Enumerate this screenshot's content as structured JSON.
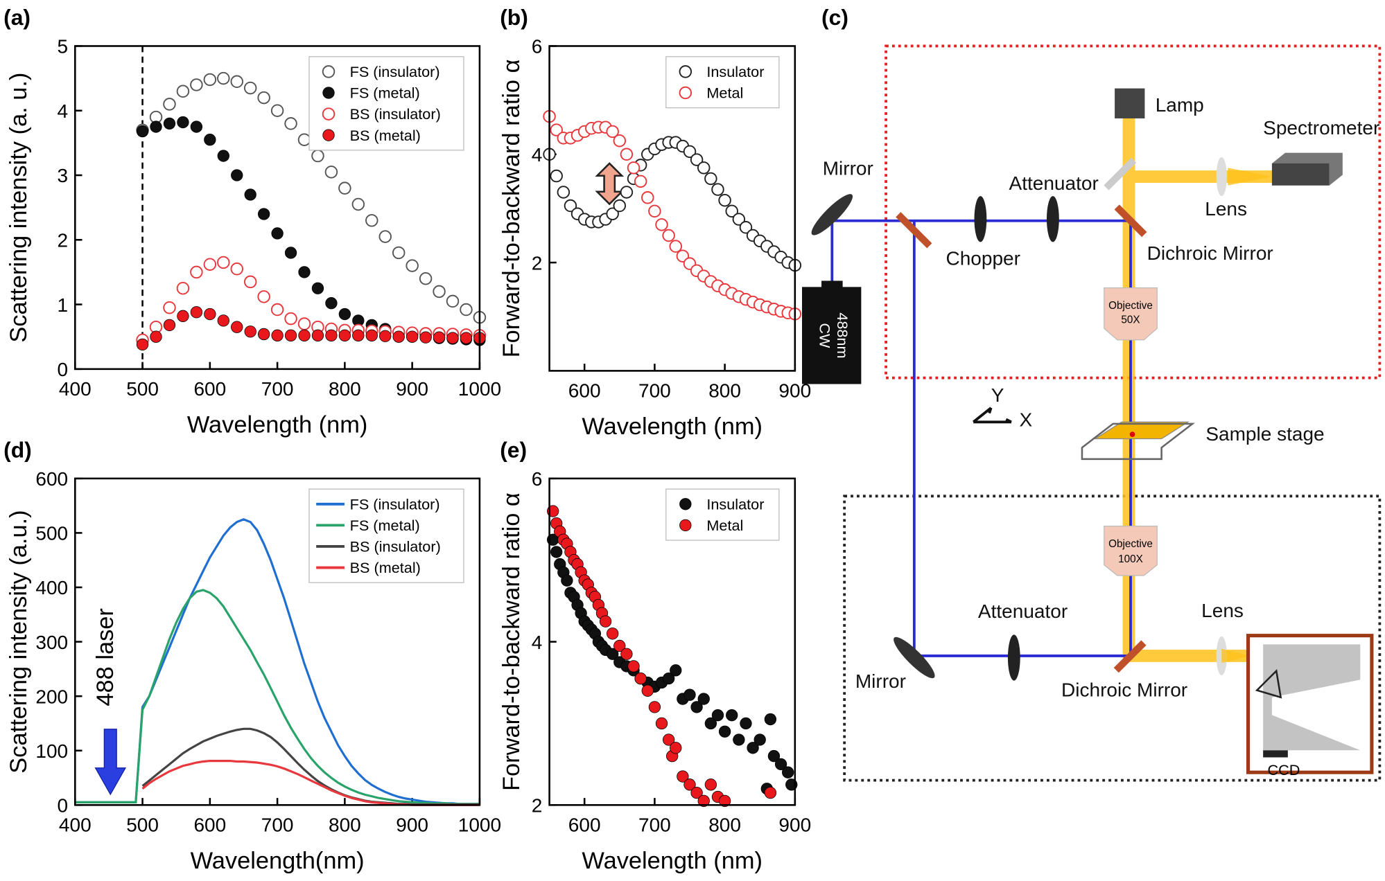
{
  "chart_data": [
    {
      "type": "scatter",
      "panel": "(a)",
      "xlabel": "Wavelength (nm)",
      "ylabel": "Scattering intensity (a. u.)",
      "xlim": [
        400,
        1000
      ],
      "ylim": [
        0,
        5
      ],
      "xticks": [
        400,
        500,
        600,
        700,
        800,
        900,
        1000
      ],
      "yticks": [
        0,
        1,
        2,
        3,
        4,
        5
      ],
      "vline": 500,
      "legend": "upper right",
      "x": [
        500,
        520,
        540,
        560,
        580,
        600,
        620,
        640,
        660,
        680,
        700,
        720,
        740,
        760,
        780,
        800,
        820,
        840,
        860,
        880,
        900,
        920,
        940,
        960,
        980,
        1000
      ],
      "series": [
        {
          "name": "FS (insulator)",
          "color": "#555555",
          "marker": "open",
          "values": [
            3.7,
            3.9,
            4.1,
            4.3,
            4.4,
            4.48,
            4.5,
            4.45,
            4.35,
            4.2,
            4.0,
            3.8,
            3.55,
            3.3,
            3.05,
            2.8,
            2.55,
            2.3,
            2.05,
            1.8,
            1.6,
            1.4,
            1.2,
            1.05,
            0.92,
            0.8
          ]
        },
        {
          "name": "FS (metal)",
          "color": "#111111",
          "marker": "filled",
          "values": [
            3.68,
            3.75,
            3.8,
            3.82,
            3.75,
            3.55,
            3.3,
            3.0,
            2.7,
            2.4,
            2.1,
            1.8,
            1.5,
            1.25,
            1.02,
            0.85,
            0.75,
            0.68,
            0.62,
            0.57,
            0.53,
            0.5,
            0.48,
            0.47,
            0.46,
            0.45
          ]
        },
        {
          "name": "BS (insulator)",
          "color": "#e8383d",
          "marker": "open",
          "values": [
            0.45,
            0.65,
            0.95,
            1.25,
            1.5,
            1.62,
            1.65,
            1.55,
            1.35,
            1.12,
            0.92,
            0.78,
            0.7,
            0.65,
            0.62,
            0.6,
            0.6,
            0.59,
            0.58,
            0.57,
            0.56,
            0.55,
            0.55,
            0.54,
            0.53,
            0.52
          ]
        },
        {
          "name": "BS (metal)",
          "color": "#e8181d",
          "marker": "filled",
          "values": [
            0.38,
            0.5,
            0.68,
            0.82,
            0.88,
            0.85,
            0.75,
            0.65,
            0.58,
            0.54,
            0.52,
            0.52,
            0.52,
            0.52,
            0.52,
            0.52,
            0.52,
            0.52,
            0.51,
            0.5,
            0.5,
            0.49,
            0.49,
            0.48,
            0.48,
            0.48
          ]
        }
      ]
    },
    {
      "type": "scatter",
      "panel": "(b)",
      "xlabel": "Wavelength (nm)",
      "ylabel": "Forward-to-backward ratio α",
      "xlim": [
        550,
        900
      ],
      "ylim": [
        0,
        6
      ],
      "xticks": [
        600,
        700,
        800,
        900
      ],
      "yticks": [
        2,
        4,
        6
      ],
      "legend": "upper right",
      "x": [
        550,
        560,
        570,
        580,
        590,
        600,
        610,
        620,
        630,
        640,
        650,
        660,
        670,
        680,
        690,
        700,
        710,
        720,
        730,
        740,
        750,
        760,
        770,
        780,
        790,
        800,
        810,
        820,
        830,
        840,
        850,
        860,
        870,
        880,
        890,
        900
      ],
      "series": [
        {
          "name": "Insulator",
          "color": "#222222",
          "marker": "open",
          "values": [
            4.0,
            3.6,
            3.3,
            3.05,
            2.9,
            2.8,
            2.75,
            2.75,
            2.8,
            2.9,
            3.05,
            3.3,
            3.55,
            3.8,
            4.0,
            4.1,
            4.18,
            4.22,
            4.22,
            4.15,
            4.05,
            3.9,
            3.75,
            3.55,
            3.35,
            3.15,
            2.95,
            2.8,
            2.65,
            2.5,
            2.4,
            2.3,
            2.2,
            2.1,
            2.0,
            1.95
          ]
        },
        {
          "name": "Metal",
          "color": "#e8383d",
          "marker": "open",
          "values": [
            4.7,
            4.45,
            4.3,
            4.3,
            4.35,
            4.42,
            4.48,
            4.5,
            4.5,
            4.42,
            4.25,
            4.0,
            3.75,
            3.5,
            3.2,
            2.95,
            2.7,
            2.5,
            2.3,
            2.12,
            1.98,
            1.85,
            1.75,
            1.65,
            1.57,
            1.5,
            1.43,
            1.37,
            1.32,
            1.27,
            1.22,
            1.18,
            1.14,
            1.1,
            1.07,
            1.05
          ]
        }
      ]
    },
    {
      "type": "line",
      "panel": "(d)",
      "xlabel": "Wavelength(nm)",
      "ylabel": "Scattering intensity (a.u.)",
      "xlim": [
        400,
        1000
      ],
      "ylim": [
        0,
        600
      ],
      "xticks": [
        400,
        500,
        600,
        700,
        800,
        900,
        1000
      ],
      "yticks": [
        0,
        100,
        200,
        300,
        400,
        500,
        600
      ],
      "legend": "upper right",
      "annotation": "488 laser",
      "x": [
        400,
        410,
        420,
        430,
        440,
        450,
        460,
        470,
        480,
        490,
        500,
        510,
        520,
        530,
        540,
        550,
        560,
        570,
        580,
        590,
        600,
        610,
        620,
        630,
        640,
        650,
        660,
        670,
        680,
        690,
        700,
        710,
        720,
        730,
        740,
        750,
        760,
        770,
        780,
        790,
        800,
        810,
        820,
        830,
        840,
        850,
        860,
        870,
        880,
        890,
        900,
        910,
        920,
        930,
        940,
        950,
        960,
        970,
        980,
        990,
        1000
      ],
      "series": [
        {
          "name": "FS (insulator)",
          "color": "#1f6fd1",
          "values": [
            5,
            5,
            5,
            5,
            5,
            5,
            5,
            5,
            5,
            5,
            180,
            200,
            230,
            260,
            290,
            320,
            350,
            380,
            405,
            430,
            455,
            475,
            495,
            510,
            520,
            525,
            520,
            505,
            480,
            450,
            415,
            380,
            340,
            300,
            260,
            225,
            190,
            160,
            135,
            110,
            90,
            72,
            58,
            46,
            37,
            30,
            24,
            19,
            15,
            12,
            10,
            8,
            6,
            5,
            4,
            3,
            3,
            2,
            2,
            2,
            2
          ]
        },
        {
          "name": "FS (metal)",
          "color": "#2aa36b",
          "values": [
            5,
            5,
            5,
            5,
            5,
            5,
            5,
            5,
            5,
            5,
            175,
            200,
            235,
            270,
            305,
            335,
            360,
            380,
            392,
            395,
            390,
            380,
            365,
            345,
            325,
            305,
            285,
            262,
            240,
            215,
            190,
            165,
            142,
            122,
            103,
            86,
            72,
            60,
            50,
            41,
            34,
            28,
            23,
            19,
            16,
            13,
            11,
            9,
            7,
            6,
            5,
            4,
            4,
            3,
            3,
            3,
            2,
            2,
            2,
            2,
            2
          ]
        },
        {
          "name": "BS (insulator)",
          "color": "#444444",
          "values": [
            null,
            null,
            null,
            null,
            null,
            null,
            null,
            null,
            null,
            null,
            35,
            45,
            55,
            65,
            75,
            85,
            95,
            103,
            110,
            117,
            122,
            127,
            131,
            135,
            138,
            140,
            140,
            137,
            132,
            125,
            115,
            103,
            90,
            77,
            65,
            54,
            44,
            36,
            29,
            23,
            18,
            14,
            11,
            8,
            6,
            5,
            4,
            3,
            2,
            2,
            1,
            1,
            1,
            1,
            1,
            1,
            1,
            1,
            1,
            1,
            1
          ]
        },
        {
          "name": "BS (metal)",
          "color": "#e8383d",
          "values": [
            null,
            null,
            null,
            null,
            null,
            null,
            null,
            null,
            null,
            null,
            30,
            40,
            48,
            55,
            62,
            67,
            72,
            75,
            78,
            80,
            81,
            81,
            81,
            81,
            80,
            80,
            79,
            78,
            76,
            74,
            71,
            67,
            62,
            57,
            51,
            45,
            39,
            33,
            27,
            22,
            17,
            13,
            10,
            7,
            5,
            4,
            3,
            2,
            1,
            1,
            0,
            0,
            0,
            0,
            0,
            0,
            0,
            0,
            0,
            0,
            0
          ]
        }
      ]
    },
    {
      "type": "scatter",
      "panel": "(e)",
      "xlabel": "Wavelength (nm)",
      "ylabel": "Forward-to-backward ratio α",
      "xlim": [
        550,
        900
      ],
      "ylim": [
        2,
        6
      ],
      "xticks": [
        600,
        700,
        800,
        900
      ],
      "yticks": [
        2,
        4,
        6
      ],
      "legend": "upper right",
      "series": [
        {
          "name": "Insulator",
          "color": "#111111",
          "marker": "filled",
          "x": [
            555,
            560,
            565,
            570,
            575,
            580,
            585,
            590,
            595,
            600,
            605,
            610,
            615,
            620,
            625,
            630,
            640,
            650,
            660,
            670,
            680,
            690,
            700,
            710,
            720,
            730,
            740,
            750,
            760,
            770,
            780,
            790,
            800,
            810,
            820,
            830,
            840,
            850,
            860,
            865,
            870,
            880,
            890,
            895
          ],
          "values": [
            5.25,
            5.1,
            4.95,
            4.85,
            4.75,
            4.6,
            4.55,
            4.45,
            4.35,
            4.25,
            4.2,
            4.15,
            4.1,
            4.0,
            3.95,
            3.9,
            3.85,
            3.75,
            3.7,
            3.65,
            3.55,
            3.5,
            3.45,
            3.5,
            3.55,
            3.65,
            3.3,
            3.35,
            3.2,
            3.3,
            3.0,
            3.1,
            2.9,
            3.1,
            2.8,
            3.0,
            2.7,
            2.8,
            2.2,
            3.05,
            2.6,
            2.5,
            2.4,
            2.25
          ]
        },
        {
          "name": "Metal",
          "color": "#e8181d",
          "marker": "filled",
          "x": [
            555,
            560,
            565,
            570,
            575,
            580,
            585,
            590,
            595,
            600,
            605,
            610,
            615,
            620,
            625,
            630,
            640,
            650,
            660,
            670,
            680,
            690,
            700,
            710,
            720,
            725,
            730,
            740,
            750,
            760,
            770,
            780,
            790,
            800,
            865
          ],
          "values": [
            5.6,
            5.45,
            5.35,
            5.25,
            5.2,
            5.1,
            5.0,
            4.95,
            4.85,
            4.75,
            4.7,
            4.6,
            4.55,
            4.45,
            4.35,
            4.25,
            4.1,
            3.95,
            3.85,
            3.7,
            3.55,
            3.4,
            3.2,
            3.0,
            2.8,
            2.6,
            2.7,
            2.35,
            2.25,
            2.15,
            2.05,
            2.25,
            2.1,
            2.05,
            2.15
          ]
        }
      ]
    }
  ],
  "diagram": {
    "panel": "(c)",
    "labels": [
      "Mirror",
      "Lamp",
      "Spectrometer",
      "Attenuator",
      "Lens",
      "Chopper",
      "Dichroic Mirror",
      "Objective",
      "50X",
      "488nm",
      "CW",
      "Y",
      "X",
      "Sample stage",
      "Objective",
      "100X",
      "Attenuator",
      "Lens",
      "Mirror",
      "Dichroic Mirror",
      "CCD"
    ]
  }
}
